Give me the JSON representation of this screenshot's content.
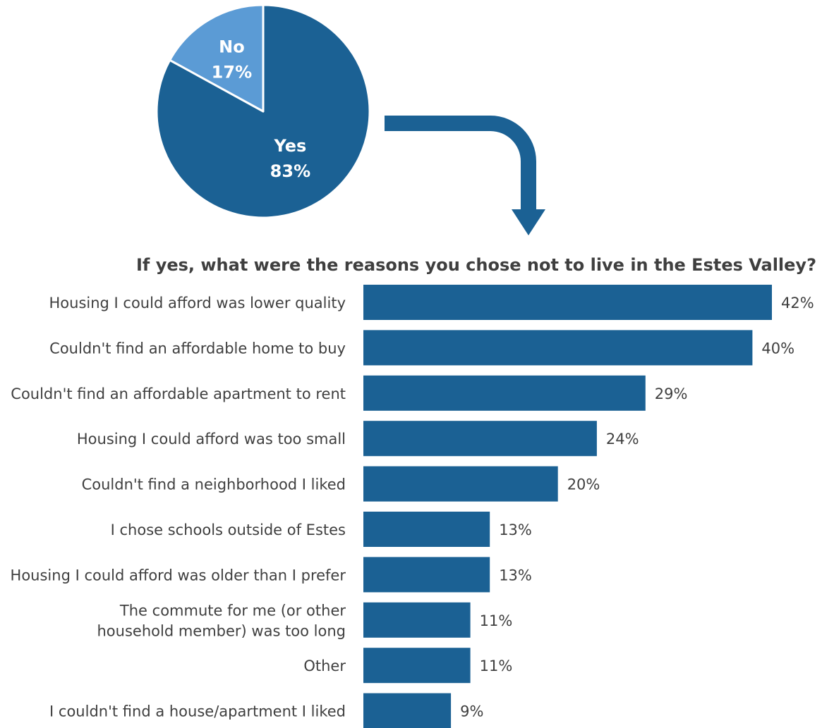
{
  "chart_data": [
    {
      "type": "pie",
      "slices": [
        {
          "label": "Yes",
          "value": 83,
          "display": "83%"
        },
        {
          "label": "No",
          "value": 17,
          "display": "17%"
        }
      ],
      "colors": [
        "#1b6194",
        "#5b9bd5"
      ]
    },
    {
      "type": "bar",
      "orientation": "horizontal",
      "title": "If yes, what were the reasons you chose not to live in the Estes Valley?",
      "categories": [
        [
          "Housing I could afford was lower quality"
        ],
        [
          "Couldn't find an affordable home to buy"
        ],
        [
          "Couldn't find an affordable apartment to rent"
        ],
        [
          "Housing I could afford was too small"
        ],
        [
          "Couldn't find a neighborhood I liked"
        ],
        [
          "I chose schools outside of Estes"
        ],
        [
          "Housing I could afford was older than I prefer"
        ],
        [
          "The commute for me (or other",
          "household member) was too long"
        ],
        [
          "Other"
        ],
        [
          "I couldn't find a house/apartment I liked"
        ]
      ],
      "values": [
        42,
        40,
        29,
        24,
        20,
        13,
        13,
        11,
        11,
        9
      ],
      "value_labels": [
        "42%",
        "40%",
        "29%",
        "24%",
        "20%",
        "13%",
        "13%",
        "11%",
        "11%",
        "9%"
      ],
      "color": "#1b6194"
    }
  ],
  "arrow_color": "#1b6194"
}
